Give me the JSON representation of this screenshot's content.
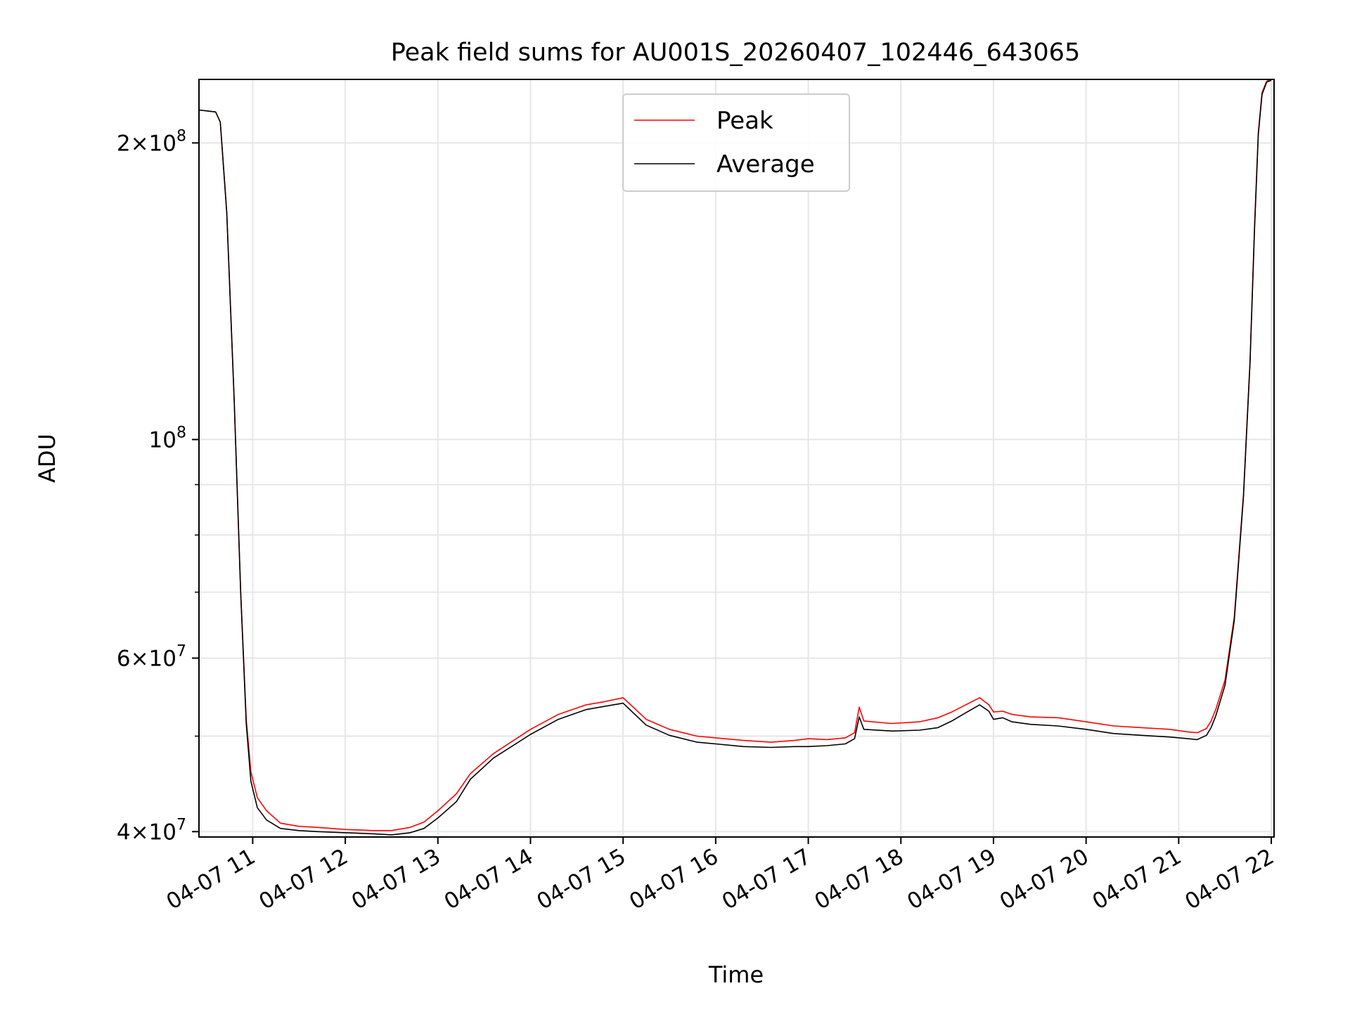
{
  "chart_data": {
    "type": "line",
    "title": "Peak field sums for AU001S_20260407_102446_643065",
    "xlabel": "Time",
    "ylabel": "ADU",
    "yscale": "log",
    "x_unit": "hours on 2026-04-07",
    "xlim": [
      10.42,
      22.03
    ],
    "ylim": [
      39500000,
      232000000
    ],
    "grid": true,
    "legend_position": "upper center",
    "x_ticks": [
      {
        "value": 11,
        "label": "04-07 11"
      },
      {
        "value": 12,
        "label": "04-07 12"
      },
      {
        "value": 13,
        "label": "04-07 13"
      },
      {
        "value": 14,
        "label": "04-07 14"
      },
      {
        "value": 15,
        "label": "04-07 15"
      },
      {
        "value": 16,
        "label": "04-07 16"
      },
      {
        "value": 17,
        "label": "04-07 17"
      },
      {
        "value": 18,
        "label": "04-07 18"
      },
      {
        "value": 19,
        "label": "04-07 19"
      },
      {
        "value": 20,
        "label": "04-07 20"
      },
      {
        "value": 21,
        "label": "04-07 21"
      },
      {
        "value": 22,
        "label": "04-07 22"
      }
    ],
    "y_major_ticks": [
      {
        "value": 40000000,
        "base": "4",
        "exp": "7"
      },
      {
        "value": 60000000,
        "base": "6",
        "exp": "7"
      },
      {
        "value": 100000000,
        "base": "",
        "exp": "8"
      },
      {
        "value": 200000000,
        "base": "2",
        "exp": "8"
      }
    ],
    "y_minor_ticks": [
      50000000,
      70000000,
      80000000,
      90000000
    ],
    "series": [
      {
        "name": "Peak",
        "color": "#ff0000",
        "x": [
          10.42,
          10.6,
          10.65,
          10.72,
          10.8,
          10.87,
          10.93,
          10.98,
          11.05,
          11.15,
          11.3,
          11.5,
          11.7,
          12.0,
          12.3,
          12.5,
          12.7,
          12.85,
          13.0,
          13.2,
          13.35,
          13.6,
          14.0,
          14.3,
          14.6,
          14.8,
          15.0,
          15.25,
          15.5,
          15.8,
          16.0,
          16.3,
          16.6,
          16.85,
          17.0,
          17.2,
          17.4,
          17.5,
          17.55,
          17.6,
          17.9,
          18.2,
          18.4,
          18.55,
          18.7,
          18.85,
          18.95,
          19.0,
          19.1,
          19.2,
          19.4,
          19.7,
          20.0,
          20.3,
          20.6,
          20.9,
          21.1,
          21.2,
          21.3,
          21.35,
          21.4,
          21.5,
          21.6,
          21.7,
          21.77,
          21.82,
          21.86,
          21.9,
          21.95,
          22.0
        ],
        "y": [
          216000000,
          215000000,
          210000000,
          170000000,
          110000000,
          70000000,
          52000000,
          46000000,
          43300000,
          42000000,
          40800000,
          40500000,
          40400000,
          40200000,
          40100000,
          40100000,
          40400000,
          40900000,
          42000000,
          43700000,
          45800000,
          48000000,
          50800000,
          52600000,
          53800000,
          54200000,
          54700000,
          52000000,
          50800000,
          50000000,
          49800000,
          49500000,
          49300000,
          49500000,
          49700000,
          49600000,
          49800000,
          50400000,
          53500000,
          51800000,
          51500000,
          51700000,
          52200000,
          52900000,
          53800000,
          54700000,
          53800000,
          52900000,
          53000000,
          52600000,
          52300000,
          52200000,
          51700000,
          51200000,
          51000000,
          50800000,
          50500000,
          50400000,
          50900000,
          51800000,
          53200000,
          57000000,
          66000000,
          88000000,
          120000000,
          165000000,
          205000000,
          225000000,
          231000000,
          232000000
        ]
      },
      {
        "name": "Average",
        "color": "#000000",
        "x": [
          10.42,
          10.6,
          10.65,
          10.72,
          10.8,
          10.87,
          10.93,
          10.98,
          11.05,
          11.15,
          11.3,
          11.5,
          11.7,
          12.0,
          12.3,
          12.5,
          12.7,
          12.85,
          13.0,
          13.2,
          13.35,
          13.6,
          14.0,
          14.3,
          14.6,
          14.8,
          15.0,
          15.25,
          15.5,
          15.8,
          16.0,
          16.3,
          16.6,
          16.85,
          17.0,
          17.2,
          17.4,
          17.5,
          17.55,
          17.6,
          17.9,
          18.2,
          18.4,
          18.55,
          18.7,
          18.85,
          18.95,
          19.0,
          19.1,
          19.2,
          19.4,
          19.7,
          20.0,
          20.3,
          20.6,
          20.9,
          21.1,
          21.2,
          21.3,
          21.35,
          21.4,
          21.5,
          21.6,
          21.7,
          21.77,
          21.82,
          21.86,
          21.9,
          21.95,
          22.0
        ],
        "y": [
          216000000,
          215000000,
          210000000,
          170000000,
          110000000,
          70000000,
          51500000,
          45000000,
          42300000,
          41100000,
          40300000,
          40100000,
          40000000,
          39900000,
          39800000,
          39700000,
          39900000,
          40300000,
          41300000,
          42900000,
          45200000,
          47500000,
          50200000,
          52000000,
          53200000,
          53600000,
          54000000,
          51300000,
          50100000,
          49300000,
          49100000,
          48800000,
          48700000,
          48800000,
          48800000,
          48900000,
          49100000,
          49700000,
          52300000,
          50800000,
          50600000,
          50700000,
          51000000,
          51800000,
          52800000,
          53800000,
          53000000,
          52000000,
          52200000,
          51700000,
          51400000,
          51200000,
          50800000,
          50300000,
          50100000,
          49900000,
          49700000,
          49600000,
          50100000,
          51000000,
          52400000,
          56300000,
          65500000,
          87500000,
          119500000,
          164000000,
          204000000,
          224000000,
          230500000,
          231500000
        ]
      }
    ]
  }
}
